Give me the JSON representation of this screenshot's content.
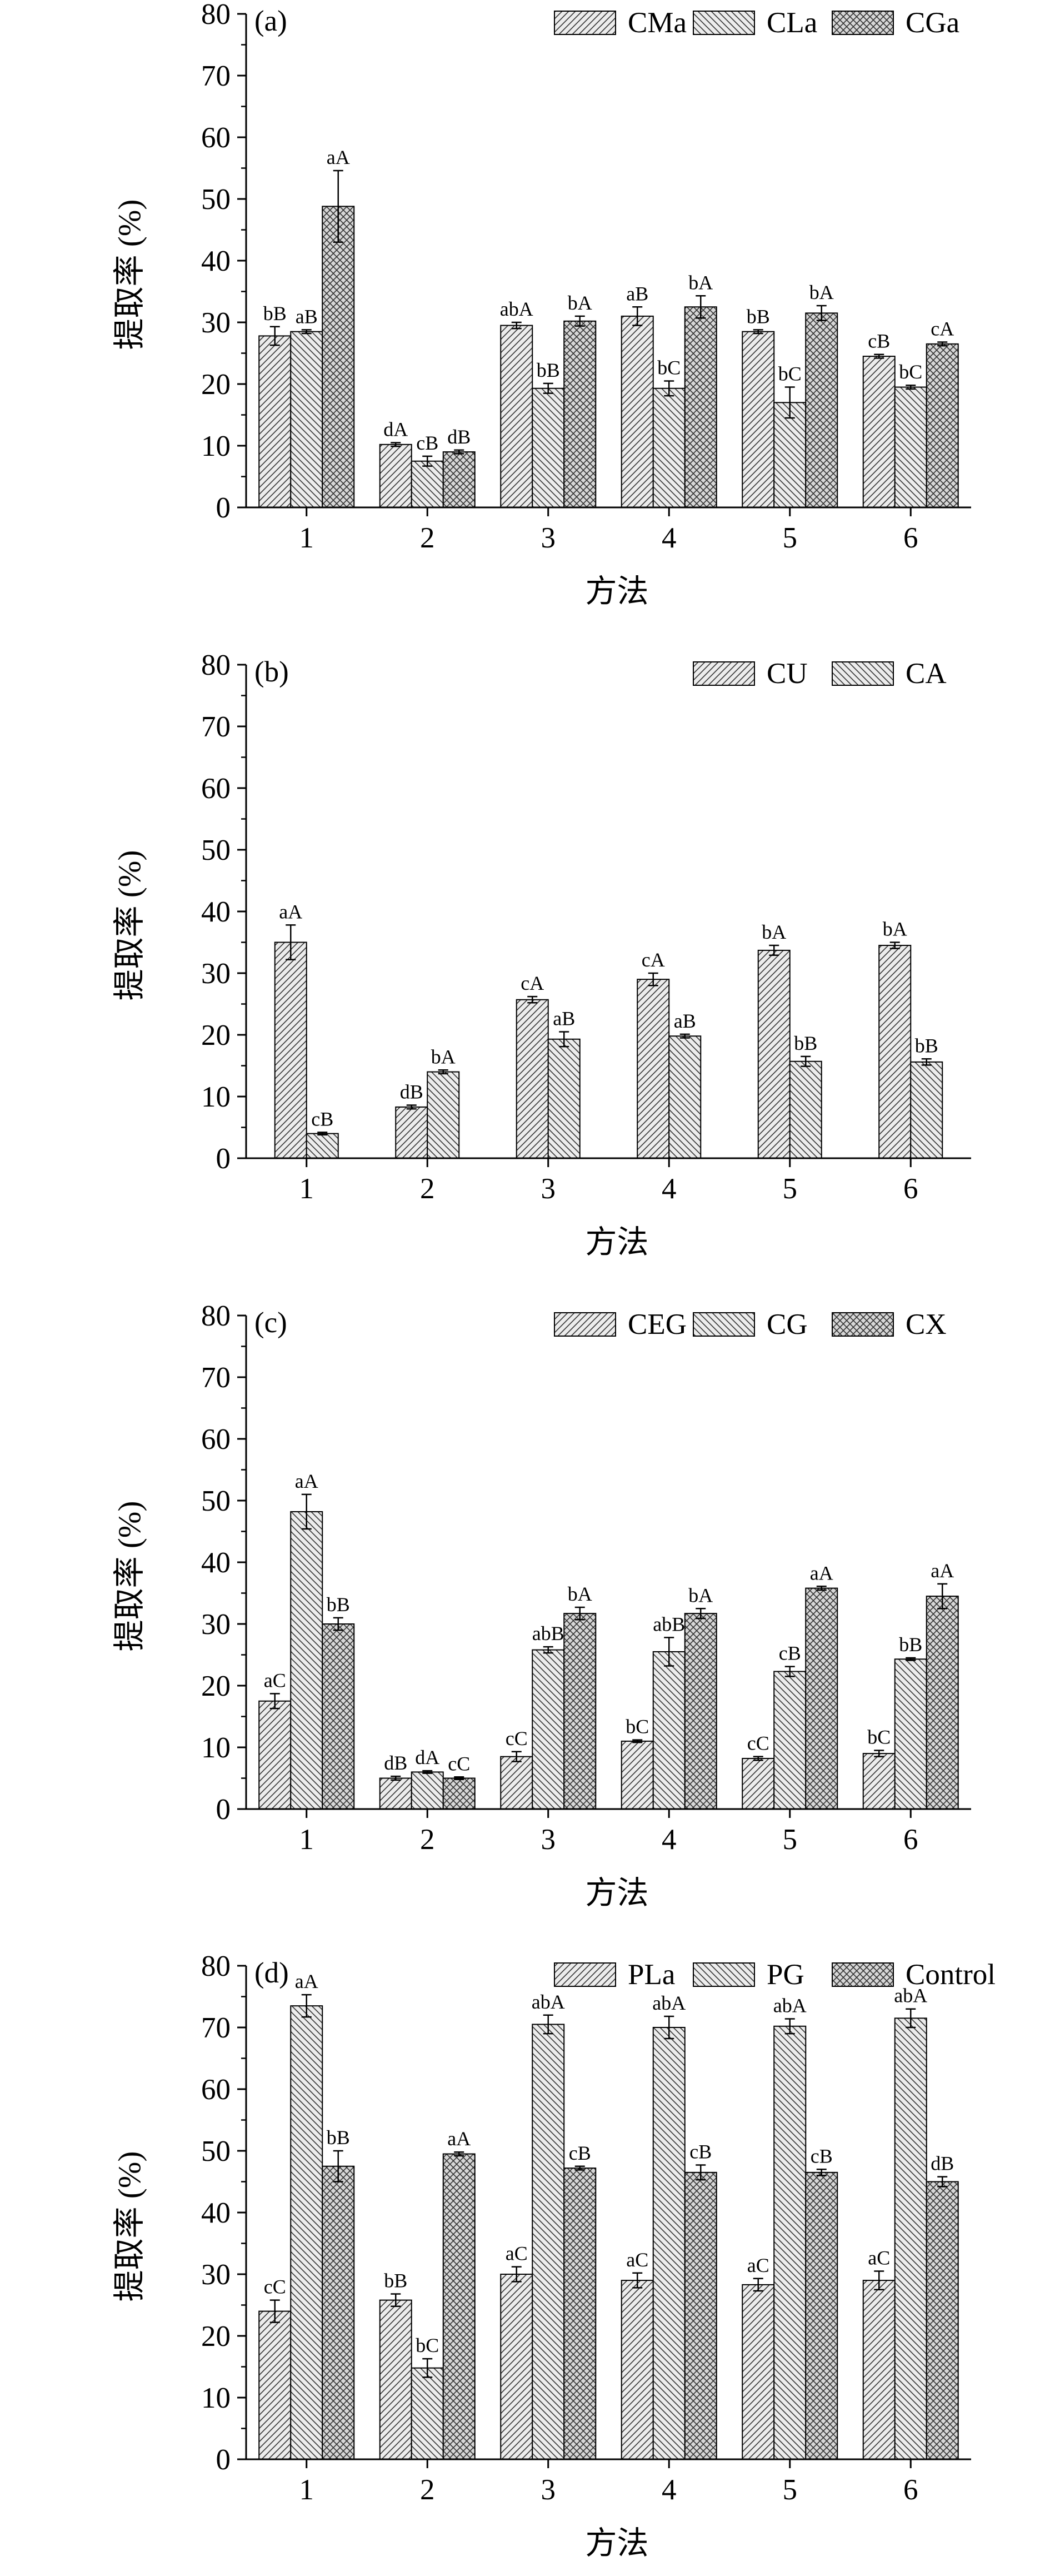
{
  "chart_data": [
    {
      "type": "bar",
      "panel_label": "(a)",
      "xlabel": "方法",
      "ylabel": "提取率 (%)",
      "ylim": [
        0,
        80
      ],
      "yticks": [
        "0",
        "10",
        "20",
        "30",
        "40",
        "50",
        "60",
        "70",
        "80"
      ],
      "categories": [
        "1",
        "2",
        "3",
        "4",
        "5",
        "6"
      ],
      "legend_position": "top-right",
      "series": [
        {
          "name": "CMa",
          "pattern": "diag-right",
          "values": [
            27.8,
            10.2,
            29.5,
            31.0,
            28.5,
            24.5
          ],
          "errors": [
            1.5,
            0.3,
            0.5,
            1.5,
            0.3,
            0.3
          ],
          "labels": [
            "bB",
            "dA",
            "abA",
            "aB",
            "bB",
            "cB"
          ]
        },
        {
          "name": "CLa",
          "pattern": "diag-left",
          "values": [
            28.5,
            7.5,
            19.3,
            19.3,
            17.0,
            19.5
          ],
          "errors": [
            0.3,
            0.8,
            0.8,
            1.2,
            2.5,
            0.3
          ],
          "labels": [
            "aB",
            "cB",
            "bB",
            "bC",
            "bC",
            "bC"
          ]
        },
        {
          "name": "CGa",
          "pattern": "cross",
          "values": [
            48.8,
            9.0,
            30.2,
            32.5,
            31.5,
            26.5
          ],
          "errors": [
            5.8,
            0.3,
            0.8,
            1.8,
            1.2,
            0.3
          ],
          "labels": [
            "aA",
            "dB",
            "bA",
            "bA",
            "bA",
            "cA"
          ]
        }
      ]
    },
    {
      "type": "bar",
      "panel_label": "(b)",
      "xlabel": "方法",
      "ylabel": "提取率 (%)",
      "ylim": [
        0,
        80
      ],
      "yticks": [
        "0",
        "10",
        "20",
        "30",
        "40",
        "50",
        "60",
        "70",
        "80"
      ],
      "categories": [
        "1",
        "2",
        "3",
        "4",
        "5",
        "6"
      ],
      "legend_position": "top-right",
      "series": [
        {
          "name": "CU",
          "pattern": "diag-right",
          "values": [
            35.0,
            8.3,
            25.7,
            29.0,
            33.7,
            34.5
          ],
          "errors": [
            2.8,
            0.3,
            0.5,
            1.0,
            0.8,
            0.5
          ],
          "labels": [
            "aA",
            "dB",
            "cA",
            "cA",
            "bA",
            "bA"
          ]
        },
        {
          "name": "CA",
          "pattern": "diag-left",
          "values": [
            4.0,
            14.0,
            19.3,
            19.8,
            15.7,
            15.6
          ],
          "errors": [
            0.2,
            0.3,
            1.2,
            0.3,
            0.8,
            0.5
          ],
          "labels": [
            "cB",
            "bA",
            "aB",
            "aB",
            "bB",
            "bB"
          ]
        }
      ]
    },
    {
      "type": "bar",
      "panel_label": "(c)",
      "xlabel": "方法",
      "ylabel": "提取率 (%)",
      "ylim": [
        0,
        80
      ],
      "yticks": [
        "0",
        "10",
        "20",
        "30",
        "40",
        "50",
        "60",
        "70",
        "80"
      ],
      "categories": [
        "1",
        "2",
        "3",
        "4",
        "5",
        "6"
      ],
      "legend_position": "top-right",
      "series": [
        {
          "name": "CEG",
          "pattern": "diag-right",
          "values": [
            17.5,
            5.0,
            8.5,
            11.0,
            8.2,
            9.0
          ],
          "errors": [
            1.2,
            0.3,
            0.8,
            0.2,
            0.3,
            0.5
          ],
          "labels": [
            "aC",
            "dB",
            "cC",
            "bC",
            "cC",
            "bC"
          ]
        },
        {
          "name": "CG",
          "pattern": "diag-left",
          "values": [
            48.2,
            6.0,
            25.8,
            25.5,
            22.3,
            24.3
          ],
          "errors": [
            2.8,
            0.2,
            0.5,
            2.3,
            0.8,
            0.2
          ],
          "labels": [
            "aA",
            "dA",
            "abB",
            "abB",
            "cB",
            "bB"
          ]
        },
        {
          "name": "CX",
          "pattern": "cross",
          "values": [
            30.0,
            5.0,
            31.7,
            31.7,
            35.8,
            34.5
          ],
          "errors": [
            1.0,
            0.2,
            1.0,
            0.8,
            0.3,
            2.0
          ],
          "labels": [
            "bB",
            "cC",
            "bA",
            "bA",
            "aA",
            "aA"
          ]
        }
      ]
    },
    {
      "type": "bar",
      "panel_label": "(d)",
      "xlabel": "方法",
      "ylabel": "提取率 (%)",
      "ylim": [
        0,
        80
      ],
      "yticks": [
        "0",
        "10",
        "20",
        "30",
        "40",
        "50",
        "60",
        "70",
        "80"
      ],
      "categories": [
        "1",
        "2",
        "3",
        "4",
        "5",
        "6"
      ],
      "legend_position": "top-right",
      "series": [
        {
          "name": "PLa",
          "pattern": "diag-right",
          "values": [
            24.0,
            25.8,
            30.0,
            29.0,
            28.3,
            29.0
          ],
          "errors": [
            1.8,
            1.0,
            1.2,
            1.2,
            1.0,
            1.5
          ],
          "labels": [
            "cC",
            "bB",
            "aC",
            "aC",
            "aC",
            "aC"
          ]
        },
        {
          "name": "PG",
          "pattern": "diag-left",
          "values": [
            73.5,
            14.8,
            70.5,
            70.0,
            70.2,
            71.5
          ],
          "errors": [
            1.8,
            1.5,
            1.5,
            1.8,
            1.2,
            1.5
          ],
          "labels": [
            "aA",
            "bC",
            "abA",
            "abA",
            "abA",
            "abA"
          ]
        },
        {
          "name": "Control",
          "pattern": "cross",
          "values": [
            47.5,
            49.5,
            47.2,
            46.5,
            46.5,
            45.0
          ],
          "errors": [
            2.5,
            0.3,
            0.3,
            1.2,
            0.5,
            0.8
          ],
          "labels": [
            "bB",
            "aA",
            "cB",
            "cB",
            "cB",
            "dB"
          ]
        }
      ]
    }
  ]
}
